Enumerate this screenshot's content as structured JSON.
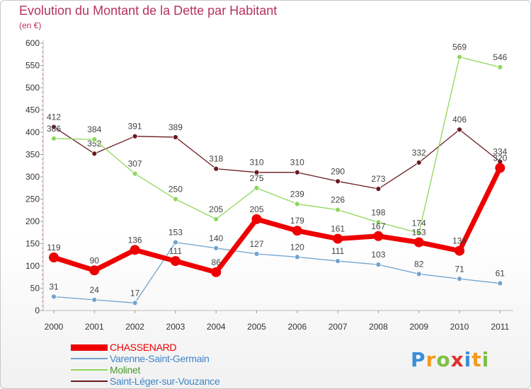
{
  "title": "Evolution du Montant de la Dette par Habitant",
  "unit": "(en €)",
  "logo": [
    "P",
    "r",
    "o",
    "x",
    "i",
    "t",
    "i"
  ],
  "logo_colors": [
    "#3a8fd6",
    "#f39a1e",
    "#7ac143",
    "#e0312f",
    "#3a8fd6",
    "#f39a1e",
    "#7ac143"
  ],
  "chart_data": {
    "type": "line",
    "x": [
      "2000",
      "2001",
      "2002",
      "2003",
      "2004",
      "2005",
      "2006",
      "2007",
      "2008",
      "2009",
      "2010",
      "2011"
    ],
    "ylim": [
      0,
      600
    ],
    "yticks": [
      "0",
      "50",
      "100",
      "150",
      "200",
      "250",
      "300",
      "350",
      "400",
      "450",
      "500",
      "550",
      "600"
    ],
    "grid": false,
    "legend_position": "bottom-left",
    "series": [
      {
        "name": "Saint-Léger-sur-Vouzance",
        "color": "#6b1a1e",
        "values": [
          412,
          352,
          391,
          389,
          318,
          310,
          310,
          290,
          273,
          332,
          406,
          334
        ]
      },
      {
        "name": "Molinet",
        "color": "#8fd65a",
        "values": [
          386,
          384,
          307,
          250,
          205,
          275,
          239,
          226,
          198,
          174,
          569,
          546
        ]
      },
      {
        "name": "Varenne-Saint-Germain",
        "color": "#6fa3d0",
        "values": [
          31,
          24,
          17,
          153,
          140,
          127,
          120,
          111,
          103,
          82,
          71,
          61
        ]
      },
      {
        "name": "CHASSENARD",
        "color": "#ee0000",
        "values": [
          119,
          90,
          136,
          111,
          86,
          205,
          179,
          161,
          167,
          153,
          134,
          320
        ]
      }
    ],
    "legend": [
      {
        "label": "CHASSENARD",
        "color": "#ee0000"
      },
      {
        "label": "Varenne-Saint-Germain",
        "color": "#6fa3d0"
      },
      {
        "label": "Molinet",
        "color": "#8fd65a"
      },
      {
        "label": "Saint-Léger-sur-Vouzance",
        "color": "#6b1a1e"
      }
    ]
  }
}
